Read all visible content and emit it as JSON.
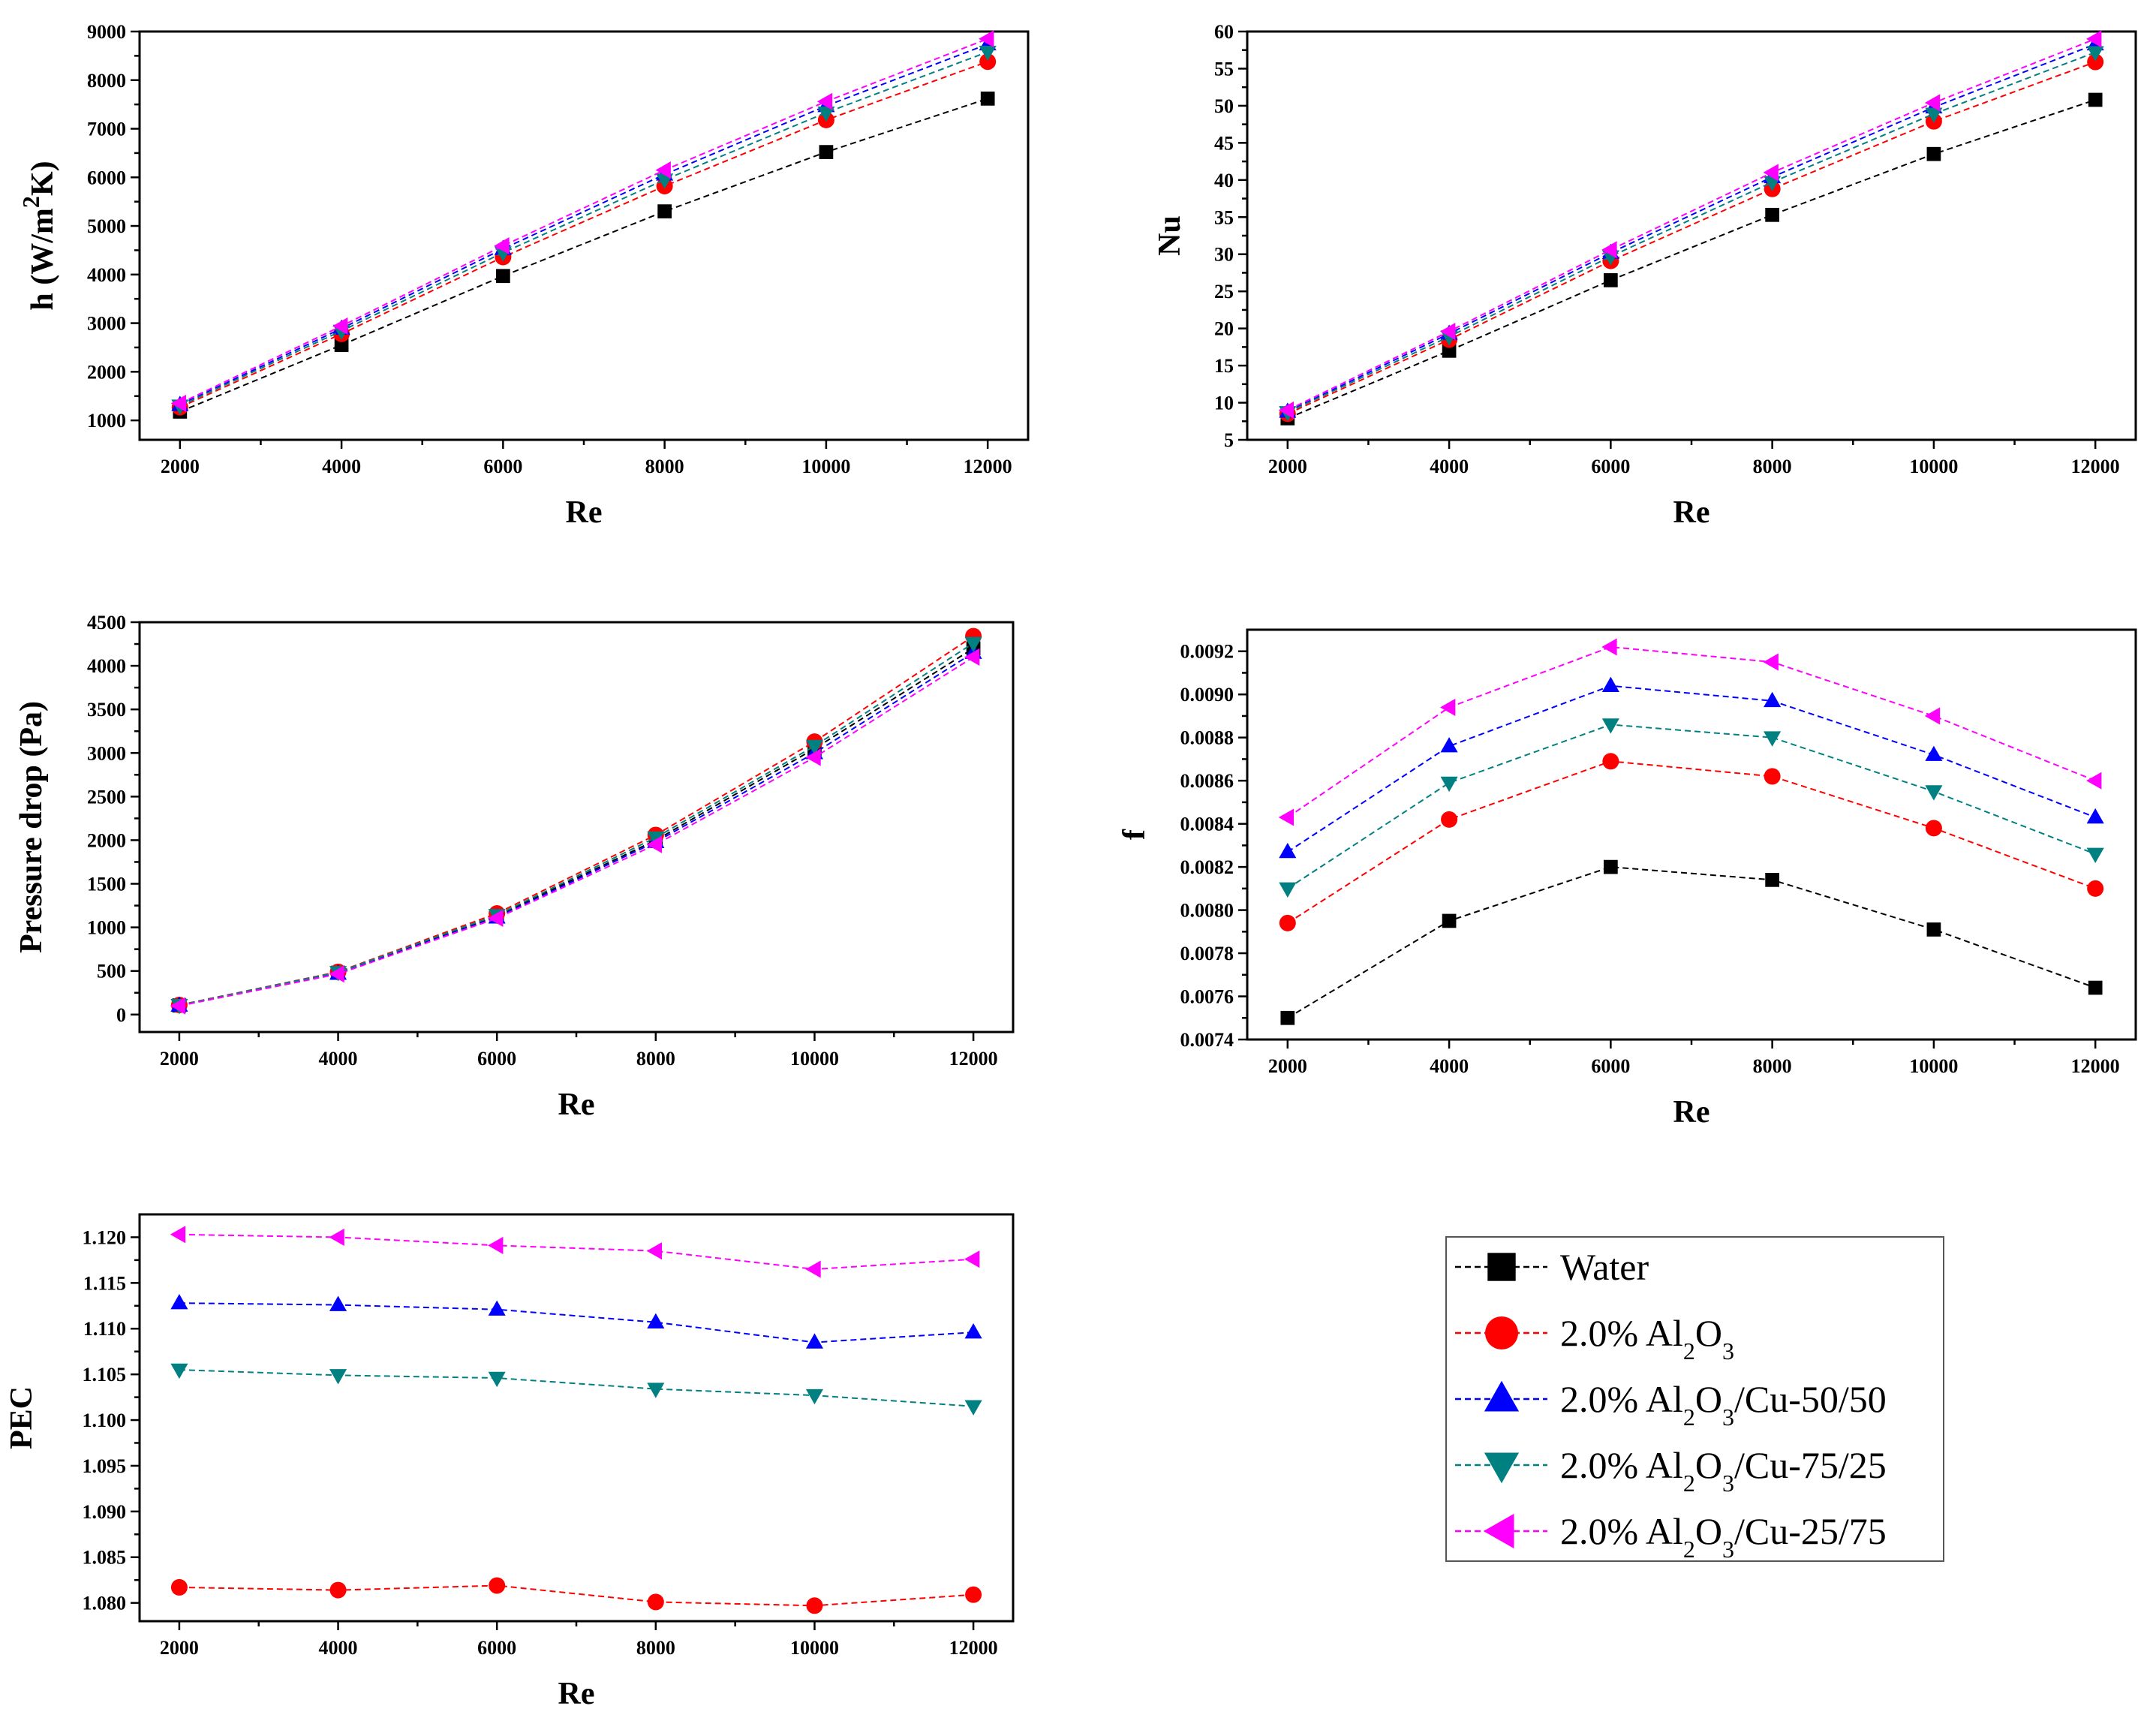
{
  "legend": {
    "items": [
      {
        "parts": [
          {
            "t": "Water"
          }
        ]
      },
      {
        "parts": [
          {
            "t": "2.0% Al"
          },
          {
            "t": "2",
            "sub": true
          },
          {
            "t": "O"
          },
          {
            "t": "3",
            "sub": true
          }
        ]
      },
      {
        "parts": [
          {
            "t": "2.0% Al"
          },
          {
            "t": "2",
            "sub": true
          },
          {
            "t": "O"
          },
          {
            "t": "3",
            "sub": true
          },
          {
            "t": "/Cu-50/50"
          }
        ]
      },
      {
        "parts": [
          {
            "t": "2.0% Al"
          },
          {
            "t": "2",
            "sub": true
          },
          {
            "t": "O"
          },
          {
            "t": "3",
            "sub": true
          },
          {
            "t": "/Cu-75/25"
          }
        ]
      },
      {
        "parts": [
          {
            "t": "2.0% Al"
          },
          {
            "t": "2",
            "sub": true
          },
          {
            "t": "O"
          },
          {
            "t": "3",
            "sub": true
          },
          {
            "t": "/Cu-25/75"
          }
        ]
      }
    ]
  },
  "series_style": [
    {
      "name": "Water",
      "color": "#000000",
      "marker": "square"
    },
    {
      "name": "2.0% Al2O3",
      "color": "#ff0000",
      "marker": "circle"
    },
    {
      "name": "2.0% Al2O3/Cu-50/50",
      "color": "#0000ff",
      "marker": "triangle-up"
    },
    {
      "name": "2.0% Al2O3/Cu-75/25",
      "color": "#008080",
      "marker": "triangle-down"
    },
    {
      "name": "2.0% Al2O3/Cu-25/75",
      "color": "#ff00ff",
      "marker": "triangle-left"
    }
  ],
  "chart_data": [
    {
      "type": "line",
      "xlabel": "Re",
      "ylabel": [
        {
          "t": "h (W/m"
        },
        {
          "t": "2",
          "sup": true
        },
        {
          "t": "K)"
        }
      ],
      "x": [
        2000,
        4000,
        6000,
        8000,
        10000,
        12000
      ],
      "xticks": [
        "2000",
        "4000",
        "6000",
        "8000",
        "10000",
        "12000"
      ],
      "xlim": [
        1500,
        12500
      ],
      "ylim": [
        600,
        9000
      ],
      "yticks": [
        "1000",
        "2000",
        "3000",
        "4000",
        "5000",
        "6000",
        "7000",
        "8000",
        "9000"
      ],
      "grid": false,
      "series": [
        {
          "name": "Water",
          "values": [
            1180,
            2550,
            3970,
            5300,
            6520,
            7620
          ]
        },
        {
          "name": "2.0% Al2O3",
          "values": [
            1270,
            2780,
            4360,
            5820,
            7180,
            8380
          ]
        },
        {
          "name": "2.0% Al2O3/Cu-50/50",
          "values": [
            1320,
            2890,
            4530,
            6060,
            7470,
            8740
          ]
        },
        {
          "name": "2.0% Al2O3/Cu-75/25",
          "values": [
            1300,
            2840,
            4450,
            5950,
            7330,
            8580
          ]
        },
        {
          "name": "2.0% Al2O3/Cu-25/75",
          "values": [
            1350,
            2940,
            4590,
            6150,
            7560,
            8850
          ]
        }
      ]
    },
    {
      "type": "line",
      "xlabel": "Re",
      "ylabel": [
        {
          "t": "Nu"
        }
      ],
      "x": [
        2000,
        4000,
        6000,
        8000,
        10000,
        12000
      ],
      "xticks": [
        "2000",
        "4000",
        "6000",
        "8000",
        "10000",
        "12000"
      ],
      "xlim": [
        1500,
        12500
      ],
      "ylim": [
        5,
        60
      ],
      "yticks": [
        "5",
        "10",
        "15",
        "20",
        "25",
        "30",
        "35",
        "40",
        "45",
        "50",
        "55",
        "60"
      ],
      "grid": false,
      "series": [
        {
          "name": "Water",
          "values": [
            7.9,
            17.0,
            26.5,
            35.3,
            43.5,
            50.8
          ]
        },
        {
          "name": "2.0% Al2O3",
          "values": [
            8.5,
            18.5,
            29.1,
            38.8,
            47.9,
            55.9
          ]
        },
        {
          "name": "2.0% Al2O3/Cu-50/50",
          "values": [
            8.8,
            19.3,
            30.2,
            40.4,
            49.8,
            58.3
          ]
        },
        {
          "name": "2.0% Al2O3/Cu-75/25",
          "values": [
            8.7,
            18.9,
            29.7,
            39.7,
            48.9,
            57.2
          ]
        },
        {
          "name": "2.0% Al2O3/Cu-25/75",
          "values": [
            9.0,
            19.6,
            30.6,
            41.0,
            50.4,
            59.0
          ]
        }
      ]
    },
    {
      "type": "line",
      "xlabel": "Re",
      "ylabel": [
        {
          "t": "Pressure drop (Pa)"
        }
      ],
      "x": [
        2000,
        4000,
        6000,
        8000,
        10000,
        12000
      ],
      "xticks": [
        "2000",
        "4000",
        "6000",
        "8000",
        "10000",
        "12000"
      ],
      "xlim": [
        1500,
        12500
      ],
      "ylim": [
        -200,
        4500
      ],
      "yticks": [
        "0",
        "500",
        "1000",
        "1500",
        "2000",
        "2500",
        "3000",
        "3500",
        "4000",
        "4500"
      ],
      "grid": false,
      "series": [
        {
          "name": "Water",
          "values": [
            105,
            480,
            1130,
            2000,
            3050,
            4200
          ]
        },
        {
          "name": "2.0% Al2O3",
          "values": [
            110,
            490,
            1160,
            2060,
            3130,
            4340
          ]
        },
        {
          "name": "2.0% Al2O3/Cu-50/50",
          "values": [
            105,
            470,
            1115,
            1980,
            3000,
            4150
          ]
        },
        {
          "name": "2.0% Al2O3/Cu-75/25",
          "values": [
            108,
            485,
            1140,
            2030,
            3080,
            4260
          ]
        },
        {
          "name": "2.0% Al2O3/Cu-25/75",
          "values": [
            100,
            465,
            1105,
            1950,
            2950,
            4100
          ]
        }
      ]
    },
    {
      "type": "line",
      "xlabel": "Re",
      "ylabel": [
        {
          "t": "f"
        }
      ],
      "x": [
        2000,
        4000,
        6000,
        8000,
        10000,
        12000
      ],
      "xticks": [
        "2000",
        "4000",
        "6000",
        "8000",
        "10000",
        "12000"
      ],
      "xlim": [
        1500,
        12500
      ],
      "ylim": [
        0.0074,
        0.0093
      ],
      "yticks": [
        "0.0074",
        "0.0076",
        "0.0078",
        "0.0080",
        "0.0082",
        "0.0084",
        "0.0086",
        "0.0088",
        "0.0090",
        "0.0092"
      ],
      "grid": false,
      "series": [
        {
          "name": "Water",
          "values": [
            0.0075,
            0.00795,
            0.0082,
            0.00814,
            0.00791,
            0.00764
          ]
        },
        {
          "name": "2.0% Al2O3",
          "values": [
            0.00794,
            0.00842,
            0.00869,
            0.00862,
            0.00838,
            0.0081
          ]
        },
        {
          "name": "2.0% Al2O3/Cu-50/50",
          "values": [
            0.00827,
            0.00876,
            0.00904,
            0.00897,
            0.00872,
            0.00843
          ]
        },
        {
          "name": "2.0% Al2O3/Cu-75/25",
          "values": [
            0.0081,
            0.00859,
            0.00886,
            0.0088,
            0.00855,
            0.00826
          ]
        },
        {
          "name": "2.0% Al2O3/Cu-25/75",
          "values": [
            0.00843,
            0.00894,
            0.00922,
            0.00915,
            0.0089,
            0.0086
          ]
        }
      ]
    },
    {
      "type": "line",
      "xlabel": "Re",
      "ylabel": [
        {
          "t": "PEC"
        }
      ],
      "x": [
        2000,
        4000,
        6000,
        8000,
        10000,
        12000
      ],
      "xticks": [
        "2000",
        "4000",
        "6000",
        "8000",
        "10000",
        "12000"
      ],
      "xlim": [
        1500,
        12500
      ],
      "ylim": [
        1.078,
        1.1225
      ],
      "yticks": [
        "1.080",
        "1.085",
        "1.090",
        "1.095",
        "1.100",
        "1.105",
        "1.110",
        "1.115",
        "1.120"
      ],
      "grid": false,
      "series": [
        {
          "name": "2.0% Al2O3",
          "values": [
            1.0817,
            1.0814,
            1.0819,
            1.0801,
            1.0797,
            1.0809
          ]
        },
        {
          "name": "2.0% Al2O3/Cu-50/50",
          "values": [
            1.1128,
            1.1126,
            1.1121,
            1.1107,
            1.1085,
            1.1096
          ]
        },
        {
          "name": "2.0% Al2O3/Cu-75/25",
          "values": [
            1.1055,
            1.1049,
            1.1046,
            1.1034,
            1.1027,
            1.1015
          ]
        },
        {
          "name": "2.0% Al2O3/Cu-25/75",
          "values": [
            1.1203,
            1.12,
            1.1191,
            1.1185,
            1.1165,
            1.1176
          ]
        }
      ]
    }
  ]
}
